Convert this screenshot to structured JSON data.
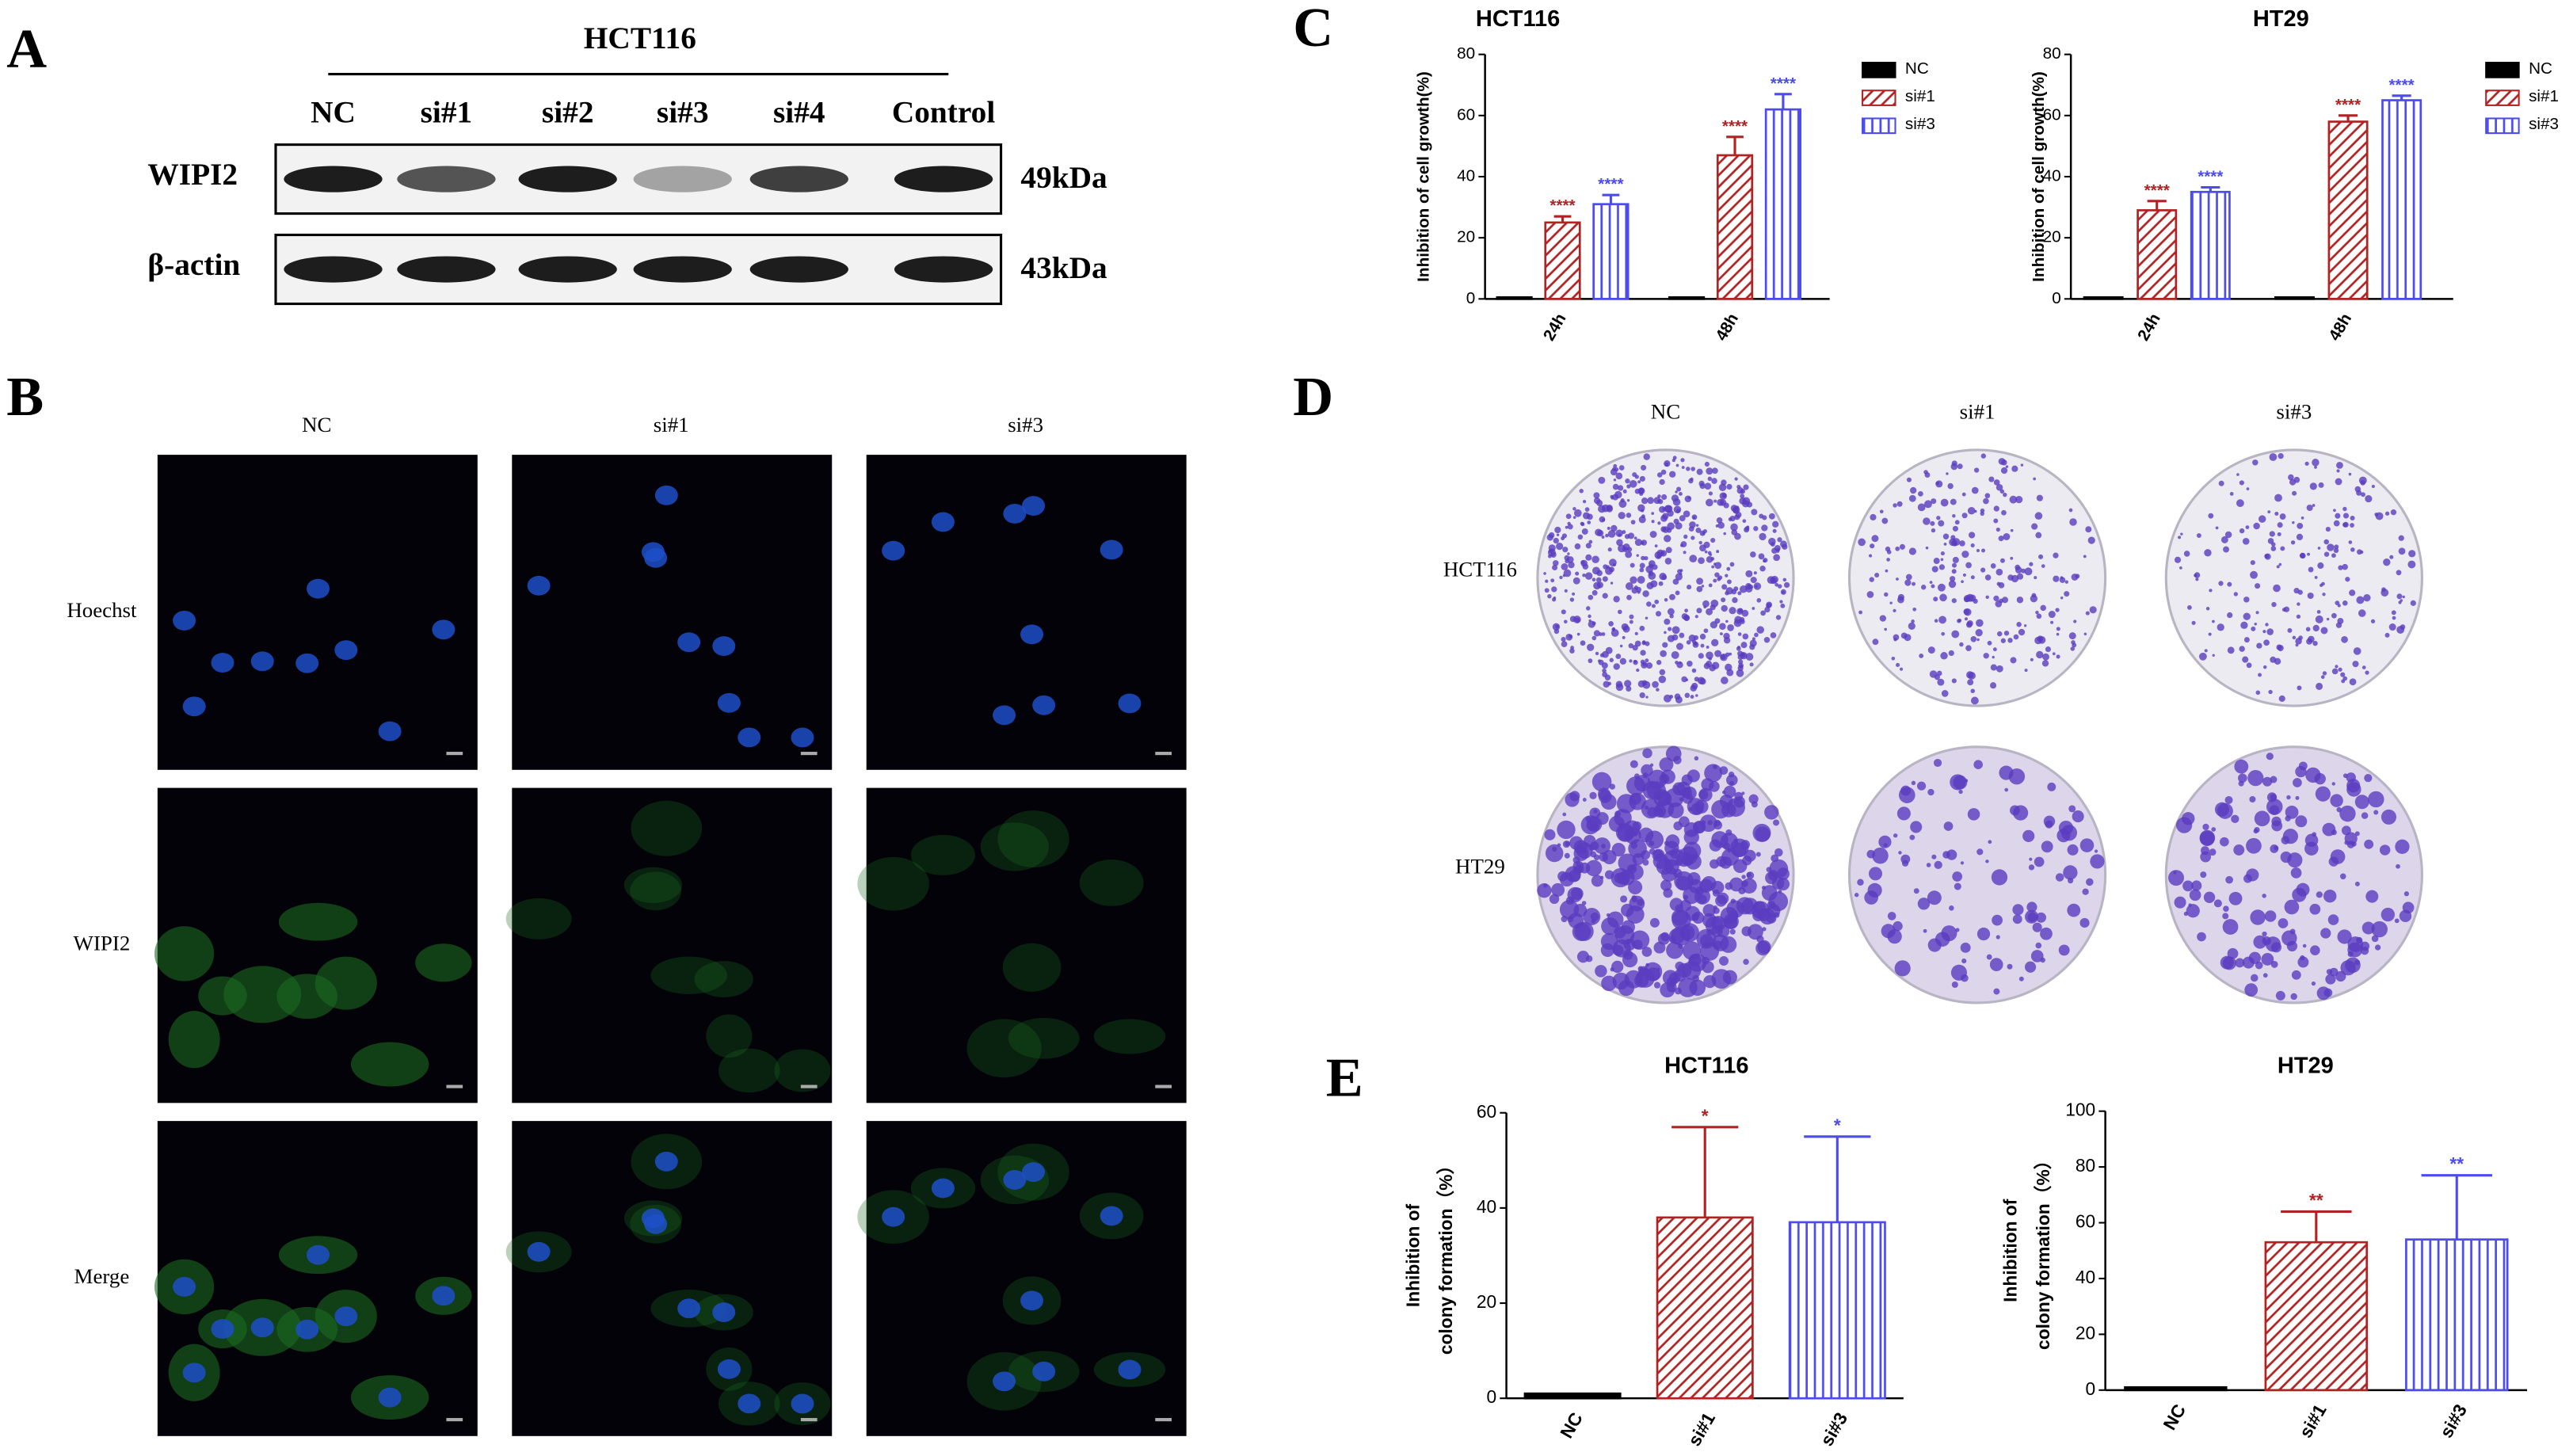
{
  "panel_labels": [
    "A",
    "B",
    "C",
    "D",
    "E"
  ],
  "western_blot": {
    "title": "HCT116",
    "lanes": [
      "NC",
      "si#1",
      "si#2",
      "si#3",
      "si#4",
      "Control"
    ],
    "rows": [
      {
        "label": "WIPI2",
        "size": "49kDa"
      },
      {
        "label": "β-actin",
        "size": "43kDa"
      }
    ]
  },
  "immunofluorescence": {
    "columns": [
      "NC",
      "si#1",
      "si#3"
    ],
    "rows": [
      "Hoechst",
      "WIPI2",
      "Merge"
    ]
  },
  "colony_formation": {
    "columns": [
      "NC",
      "si#1",
      "si#3"
    ],
    "rows": [
      "HCT116",
      "HT29"
    ]
  },
  "chart_data": [
    {
      "type": "bar",
      "title": "HCT116",
      "ylabel": "Inhibition of cell growth(%)",
      "categories": [
        "24h",
        "48h"
      ],
      "ylim": [
        0,
        80
      ],
      "yticks": [
        0,
        20,
        40,
        60,
        80
      ],
      "legend": "right",
      "series": [
        {
          "name": "NC",
          "color": "#000000",
          "pattern": "solid",
          "values": [
            0.5,
            0.5
          ]
        },
        {
          "name": "si#1",
          "color": "#b22222",
          "pattern": "diagonal",
          "values": [
            25,
            47
          ],
          "errors": [
            2,
            6
          ],
          "significance": [
            "****",
            "****"
          ]
        },
        {
          "name": "si#3",
          "color": "#4b4bf0",
          "pattern": "vertical",
          "values": [
            31,
            62
          ],
          "errors": [
            3,
            5
          ],
          "significance": [
            "****",
            "****"
          ]
        }
      ]
    },
    {
      "type": "bar",
      "title": "HT29",
      "ylabel": "Inhibition of cell growth(%)",
      "categories": [
        "24h",
        "48h"
      ],
      "ylim": [
        0,
        80
      ],
      "yticks": [
        0,
        20,
        40,
        60,
        80
      ],
      "legend": "right",
      "series": [
        {
          "name": "NC",
          "color": "#000000",
          "pattern": "solid",
          "values": [
            0.5,
            0.5
          ]
        },
        {
          "name": "si#1",
          "color": "#b22222",
          "pattern": "diagonal",
          "values": [
            29,
            58
          ],
          "errors": [
            3,
            2
          ],
          "significance": [
            "****",
            "****"
          ]
        },
        {
          "name": "si#3",
          "color": "#4b4bf0",
          "pattern": "vertical",
          "values": [
            35,
            65
          ],
          "errors": [
            1.5,
            1.5
          ],
          "significance": [
            "****",
            "****"
          ]
        }
      ]
    },
    {
      "type": "bar",
      "title": "HCT116",
      "ylabel": [
        "Inhibition of",
        "colony formation（%）"
      ],
      "categories": [
        "NC",
        "si#1",
        "si#3"
      ],
      "values": [
        1,
        38,
        37
      ],
      "errors": [
        null,
        19,
        18
      ],
      "colors": [
        "#000000",
        "#b22222",
        "#4b4bf0"
      ],
      "patterns": [
        "solid",
        "diagonal",
        "vertical"
      ],
      "significance": [
        null,
        "*",
        "*"
      ],
      "ylim": [
        0,
        60
      ],
      "yticks": [
        0,
        20,
        40,
        60
      ]
    },
    {
      "type": "bar",
      "title": "HT29",
      "ylabel": [
        "Inhibition of",
        "colony formation（%）"
      ],
      "categories": [
        "NC",
        "si#1",
        "si#3"
      ],
      "values": [
        1,
        53,
        54
      ],
      "errors": [
        null,
        11,
        23
      ],
      "colors": [
        "#000000",
        "#b22222",
        "#4b4bf0"
      ],
      "patterns": [
        "solid",
        "diagonal",
        "vertical"
      ],
      "significance": [
        null,
        "**",
        "**"
      ],
      "ylim": [
        0,
        100
      ],
      "yticks": [
        0,
        20,
        40,
        60,
        80,
        100
      ]
    }
  ]
}
